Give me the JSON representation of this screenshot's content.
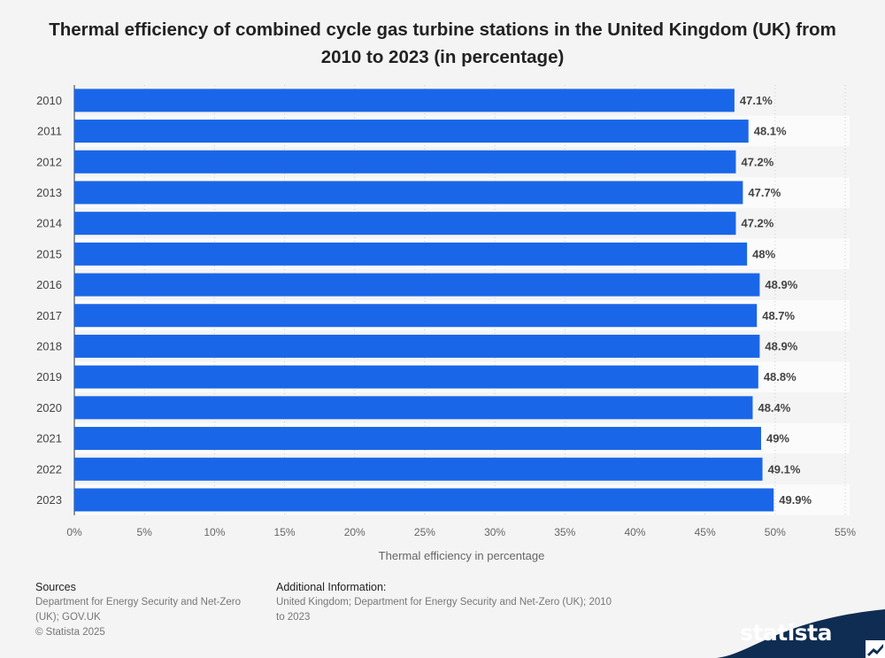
{
  "title": "Thermal efficiency of combined cycle gas turbine stations in the United Kingdom (UK) from 2010 to 2023 (in percentage)",
  "colors": {
    "bar": "#1a66e8",
    "label": "#444444",
    "grid": "#cfcfcf",
    "brand": "#0f2d52"
  },
  "chart_data": {
    "type": "bar",
    "orientation": "horizontal",
    "title": "Thermal efficiency of combined cycle gas turbine stations in the United Kingdom (UK) from 2010 to 2023 (in percentage)",
    "xlabel": "Thermal efficiency in percentage",
    "ylabel": "",
    "xlim": [
      0,
      55
    ],
    "xticks": [
      "0%",
      "5%",
      "10%",
      "15%",
      "20%",
      "25%",
      "30%",
      "35%",
      "40%",
      "45%",
      "50%",
      "55%"
    ],
    "categories": [
      "2010",
      "2011",
      "2012",
      "2013",
      "2014",
      "2015",
      "2016",
      "2017",
      "2018",
      "2019",
      "2020",
      "2021",
      "2022",
      "2023"
    ],
    "values": [
      47.1,
      48.1,
      47.2,
      47.7,
      47.2,
      48,
      48.9,
      48.7,
      48.9,
      48.8,
      48.4,
      49,
      49.1,
      49.9
    ],
    "value_labels": [
      "47.1%",
      "48.1%",
      "47.2%",
      "47.7%",
      "47.2%",
      "48%",
      "48.9%",
      "48.7%",
      "48.9%",
      "48.8%",
      "48.4%",
      "49%",
      "49.1%",
      "49.9%"
    ],
    "grid": true
  },
  "footer": {
    "sources_heading": "Sources",
    "sources_line1": "Department for Energy Security and Net-Zero",
    "sources_line2": "(UK); GOV.UK",
    "copyright": "© Statista 2025",
    "info_heading": "Additional Information:",
    "info_line1": "United Kingdom; Department for Energy Security and Net-Zero (UK); 2010",
    "info_line2": "to 2023"
  },
  "brand": {
    "name": "statista",
    "icon": "statista-logo-icon"
  }
}
